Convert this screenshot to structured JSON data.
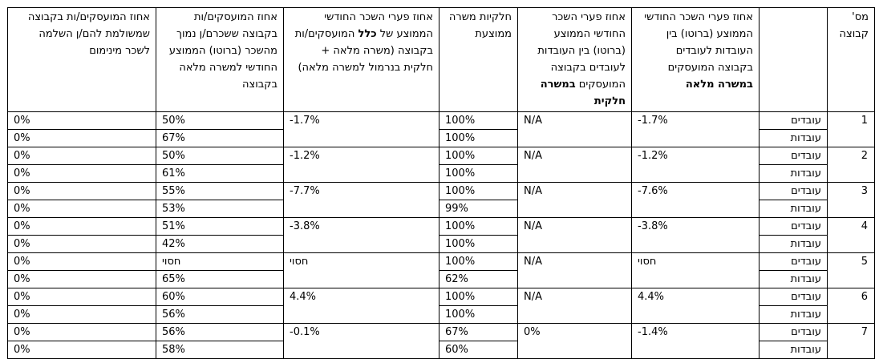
{
  "headers": {
    "group_no": "מס' קבוצה",
    "gender": "",
    "gap_fulltime": {
      "pre": "אחוז פערי השכר החודשי הממוצע (ברוטו) בין העובדות לעובדים בקבוצה המועסקים ",
      "bold": "במשרה מלאה",
      "post": ""
    },
    "gap_parttime": {
      "pre": "אחוז פערי השכר החודשי הממוצע (ברוטו) בין העובדות לעובדים בקבוצה המועסקים ",
      "bold": "במשרה חלקית",
      "post": ""
    },
    "avg_parttime": "חלקיות משרה ממוצעת",
    "gap_all": {
      "pre": "אחוז פערי השכר החודשי הממוצע של ",
      "bold": "כלל",
      "post": " המועסקים/ות בקבוצה (משרה מלאה + חלקית בנרמול למשרה מלאה)"
    },
    "pct_below_avg": "אחוז המועסקים/ות בקבוצה ששכרם/ן נמוך מהשכר (ברוטו) הממוצע החודשי למשרה מלאה בקבוצה",
    "pct_min_wage": "אחוז המועסקים/ות בקבוצה שמשולמת להם/ן השלמה לשכר מינימום"
  },
  "groups": [
    {
      "no": "1",
      "gap_fulltime": "-1.7%",
      "gap_parttime": "N/A",
      "gap_all": "-1.7%",
      "rows": [
        {
          "gender": "עובדים",
          "avg_parttime": "100%",
          "pct_below_avg": "50%",
          "pct_min_wage": "0%"
        },
        {
          "gender": "עובדות",
          "avg_parttime": "100%",
          "pct_below_avg": "67%",
          "pct_min_wage": "0%"
        }
      ]
    },
    {
      "no": "2",
      "gap_fulltime": "-1.2%",
      "gap_parttime": "N/A",
      "gap_all": "-1.2%",
      "rows": [
        {
          "gender": "עובדים",
          "avg_parttime": "100%",
          "pct_below_avg": "50%",
          "pct_min_wage": "0%"
        },
        {
          "gender": "עובדות",
          "avg_parttime": "100%",
          "pct_below_avg": "61%",
          "pct_min_wage": "0%"
        }
      ]
    },
    {
      "no": "3",
      "gap_fulltime": "-7.6%",
      "gap_parttime": "N/A",
      "gap_all": "-7.7%",
      "rows": [
        {
          "gender": "עובדים",
          "avg_parttime": "100%",
          "pct_below_avg": "55%",
          "pct_min_wage": "0%"
        },
        {
          "gender": "עובדות",
          "avg_parttime": "99%",
          "pct_below_avg": "53%",
          "pct_min_wage": "0%"
        }
      ]
    },
    {
      "no": "4",
      "gap_fulltime": "-3.8%",
      "gap_parttime": "N/A",
      "gap_all": "-3.8%",
      "rows": [
        {
          "gender": "עובדים",
          "avg_parttime": "100%",
          "pct_below_avg": "51%",
          "pct_min_wage": "0%"
        },
        {
          "gender": "עובדות",
          "avg_parttime": "100%",
          "pct_below_avg": "42%",
          "pct_min_wage": "0%"
        }
      ]
    },
    {
      "no": "5",
      "gap_fulltime": "חסוי",
      "gap_parttime": "N/A",
      "gap_all": "חסוי",
      "rows": [
        {
          "gender": "עובדים",
          "avg_parttime": "100%",
          "pct_below_avg": "חסוי",
          "pct_min_wage": "0%"
        },
        {
          "gender": "עובדות",
          "avg_parttime": "62%",
          "pct_below_avg": "65%",
          "pct_min_wage": "0%"
        }
      ]
    },
    {
      "no": "6",
      "gap_fulltime": "4.4%",
      "gap_parttime": "N/A",
      "gap_all": "4.4%",
      "rows": [
        {
          "gender": "עובדים",
          "avg_parttime": "100%",
          "pct_below_avg": "60%",
          "pct_min_wage": "0%"
        },
        {
          "gender": "עובדות",
          "avg_parttime": "100%",
          "pct_below_avg": "56%",
          "pct_min_wage": "0%"
        }
      ]
    },
    {
      "no": "7",
      "gap_fulltime": "-1.4%",
      "gap_parttime": "0%",
      "gap_all": "-0.1%",
      "rows": [
        {
          "gender": "עובדים",
          "avg_parttime": "67%",
          "pct_below_avg": "56%",
          "pct_min_wage": "0%"
        },
        {
          "gender": "עובדות",
          "avg_parttime": "60%",
          "pct_below_avg": "58%",
          "pct_min_wage": "0%"
        }
      ]
    }
  ]
}
